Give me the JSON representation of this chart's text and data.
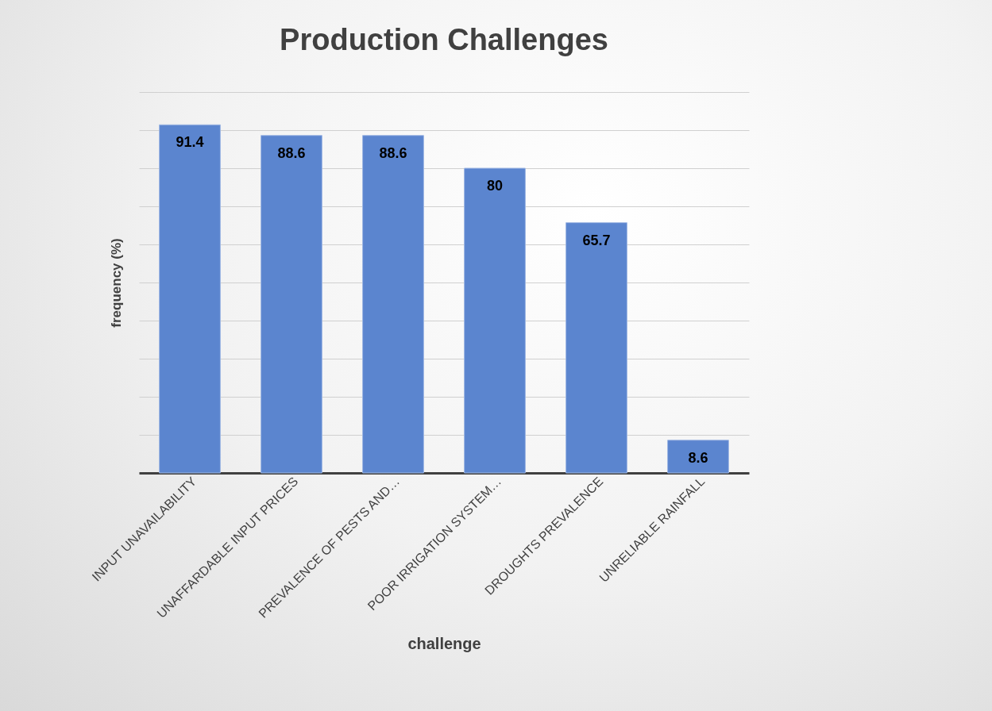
{
  "chart_data": {
    "type": "bar",
    "title": "Production Challenges",
    "xlabel": "challenge",
    "ylabel": "frequency (%)",
    "categories": [
      "INPUT UNAVAILABILITY",
      "UNAFFARDABLE INPUT PRICES",
      "PREVALENCE OF PESTS AND…",
      "POOR IRRIGATION SYSTEM…",
      "DROUGHTS PREVALENCE",
      "UNRELIABLE RAINFALL"
    ],
    "values": [
      91.4,
      88.6,
      88.6,
      80,
      65.7,
      8.6
    ],
    "color": "#5b85cf",
    "ylim": [
      0,
      100
    ],
    "yticks": [
      {
        "value": 0,
        "label": null
      },
      {
        "value": 10,
        "label": null
      },
      {
        "value": 20,
        "label": null
      },
      {
        "value": 30,
        "label": null
      },
      {
        "value": 40,
        "label": null
      },
      {
        "value": 50,
        "label": null
      },
      {
        "value": 60,
        "label": null
      },
      {
        "value": 70,
        "label": null
      },
      {
        "value": 80,
        "label": null
      },
      {
        "value": 90,
        "label": null
      },
      {
        "value": 100,
        "label": null
      }
    ],
    "grid": "y",
    "data_labels": true,
    "tick_labels": "x"
  }
}
